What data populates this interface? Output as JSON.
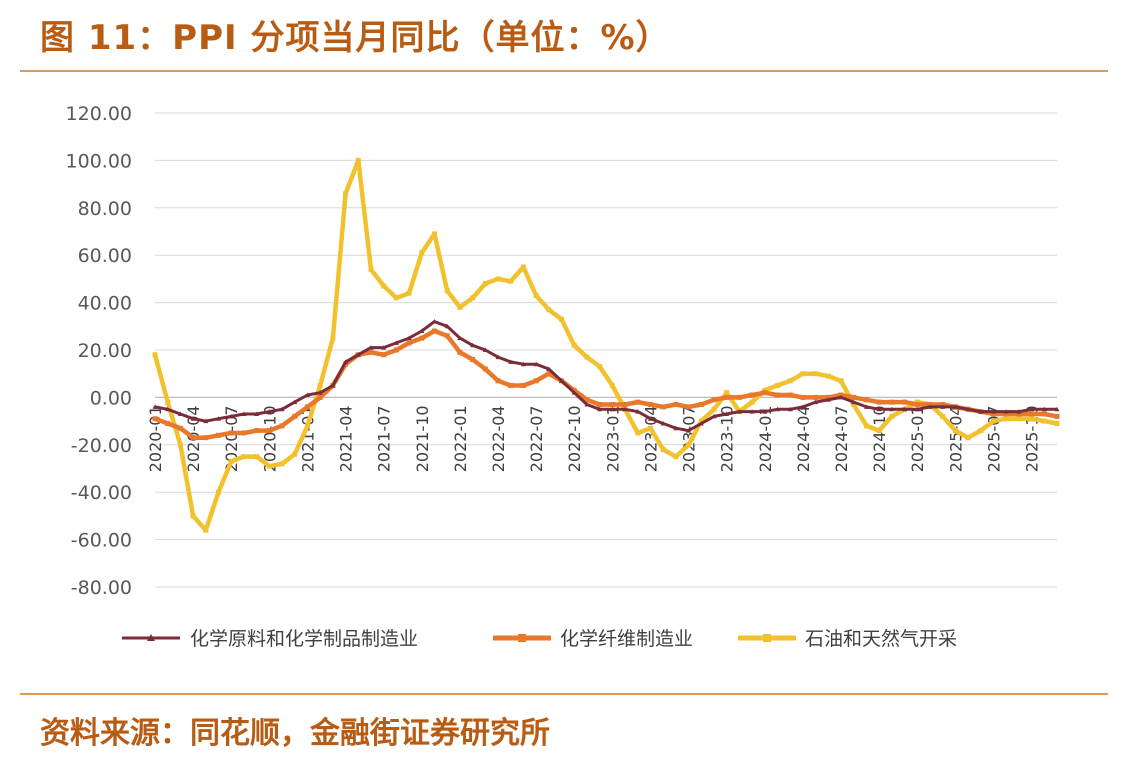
{
  "title": "图 11：PPI 分项当月同比（单位：%）",
  "source": "资料来源：同花顺，金融街证券研究所",
  "chart_data": {
    "type": "line",
    "title": "",
    "xlabel": "",
    "ylabel": "",
    "ylim": [
      -80,
      120
    ],
    "y_ticks": [
      "120.00",
      "100.00",
      "80.00",
      "60.00",
      "40.00",
      "20.00",
      "0.00",
      "-20.00",
      "-40.00",
      "-60.00",
      "-80.00"
    ],
    "x_tick_labels": [
      "2020-01",
      "2020-04",
      "2020-07",
      "2020-10",
      "2021-01",
      "2021-04",
      "2021-07",
      "2021-10",
      "2022-01",
      "2022-04",
      "2022-07",
      "2022-10",
      "2023-01",
      "2023-04",
      "2023-07",
      "2023-10",
      "2024-01",
      "2024-04",
      "2024-07",
      "2024-10",
      "2025-01",
      "2025-04",
      "2025-07",
      "2025-10"
    ],
    "x_tick_index": [
      0,
      3,
      6,
      9,
      12,
      15,
      18,
      21,
      24,
      27,
      30,
      33,
      36,
      39,
      42,
      45,
      48,
      51,
      54,
      57,
      60,
      63,
      66,
      69
    ],
    "grid": true,
    "legend_position": "bottom",
    "colors": {
      "series1": "#7b2c3b",
      "series2": "#e8782a",
      "series3": "#f2c12e",
      "grid": "#d9d9d9"
    },
    "series": [
      {
        "name": "化学原料和化学制品制造业",
        "values": [
          -4,
          -5,
          -7,
          -9,
          -10,
          -9,
          -8,
          -7,
          -7,
          -6,
          -5,
          -2,
          1,
          2,
          5,
          15,
          18,
          21,
          21,
          23,
          25,
          28,
          32,
          30,
          25,
          22,
          20,
          17,
          15,
          14,
          14,
          12,
          7,
          2,
          -3,
          -5,
          -5,
          -5,
          -6,
          -9,
          -11,
          -13,
          -14,
          -11,
          -8,
          -7,
          -6,
          -6,
          -6,
          -5,
          -5,
          -4,
          -2,
          -1,
          0,
          -2,
          -4,
          -5,
          -5,
          -5,
          -5,
          -4,
          -4,
          -4,
          -5,
          -6,
          -6,
          -6,
          -6,
          -5,
          -5,
          -5
        ]
      },
      {
        "name": "化学纤维制造业",
        "values": [
          -9,
          -11,
          -13,
          -17,
          -17,
          -16,
          -15,
          -15,
          -14,
          -14,
          -12,
          -8,
          -4,
          0,
          5,
          14,
          18,
          19,
          18,
          20,
          23,
          25,
          28,
          26,
          19,
          16,
          12,
          7,
          5,
          5,
          7,
          10,
          7,
          3,
          -1,
          -3,
          -3,
          -3,
          -2,
          -3,
          -4,
          -3,
          -4,
          -3,
          -1,
          0,
          0,
          1,
          2,
          1,
          1,
          0,
          0,
          0,
          1,
          0,
          -1,
          -2,
          -2,
          -2,
          -3,
          -3,
          -3,
          -4,
          -5,
          -6,
          -7,
          -7,
          -7,
          -7,
          -7,
          -8
        ]
      },
      {
        "name": "石油和天然气开采",
        "values": [
          18,
          -2,
          -20,
          -50,
          -56,
          -40,
          -27,
          -25,
          -25,
          -29,
          -28,
          -24,
          -12,
          5,
          25,
          86,
          100,
          54,
          47,
          42,
          44,
          61,
          69,
          45,
          38,
          42,
          48,
          50,
          49,
          55,
          43,
          37,
          33,
          22,
          17,
          13,
          5,
          -5,
          -15,
          -13,
          -22,
          -25,
          -20,
          -10,
          -5,
          2,
          -6,
          -2,
          3,
          5,
          7,
          10,
          10,
          9,
          7,
          -3,
          -12,
          -14,
          -8,
          -5,
          -2,
          -3,
          -8,
          -14,
          -17,
          -14,
          -10,
          -9,
          -9,
          -9,
          -10,
          -11
        ]
      }
    ]
  }
}
